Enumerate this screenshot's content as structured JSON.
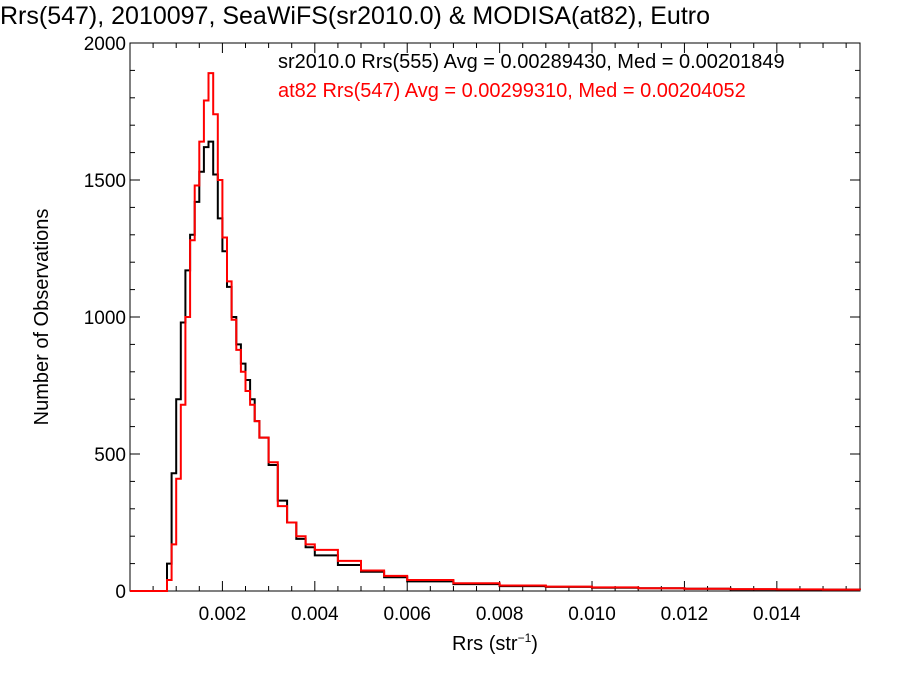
{
  "chart_data": {
    "type": "line",
    "title": "Rrs(547), 2010097, SeaWiFS(sr2010.0) & MODISA(at82), Eutro",
    "xlabel": "Rrs (str",
    "xlabel_sup": "−1",
    "xlabel_close": ")",
    "ylabel": "Number of Observations",
    "xlim": [
      0.0,
      0.0158
    ],
    "ylim": [
      0,
      2000
    ],
    "xticks": [
      0.002,
      0.004,
      0.006,
      0.008,
      0.01,
      0.012,
      0.014
    ],
    "xtick_labels": [
      "0.002",
      "0.004",
      "0.006",
      "0.008",
      "0.010",
      "0.012",
      "0.014"
    ],
    "yticks": [
      0,
      500,
      1000,
      1500,
      2000
    ],
    "ytick_labels": [
      "0",
      "500",
      "1000",
      "1500",
      "2000"
    ],
    "grid": false,
    "legend_position": "top-right",
    "legend": [
      "sr2010.0 Rrs(555) Avg = 0.00289430, Med = 0.00201849",
      "at82 Rrs(547) Avg = 0.00299310, Med = 0.00204052"
    ],
    "series": [
      {
        "name": "sr2010.0 Rrs(555)",
        "color": "#000000",
        "x": [
          0.0,
          0.0006,
          0.0008,
          0.0009,
          0.001,
          0.0011,
          0.0012,
          0.0013,
          0.0014,
          0.0015,
          0.0016,
          0.0017,
          0.0018,
          0.0019,
          0.002,
          0.0021,
          0.0022,
          0.0023,
          0.0024,
          0.0025,
          0.0026,
          0.0027,
          0.0028,
          0.003,
          0.0032,
          0.0034,
          0.0036,
          0.0038,
          0.004,
          0.0045,
          0.005,
          0.0055,
          0.006,
          0.007,
          0.008,
          0.009,
          0.01,
          0.011,
          0.012,
          0.013,
          0.014,
          0.015,
          0.0158
        ],
        "y": [
          0,
          0,
          100,
          430,
          700,
          980,
          1170,
          1300,
          1420,
          1530,
          1620,
          1640,
          1520,
          1360,
          1240,
          1110,
          1000,
          900,
          830,
          770,
          700,
          620,
          560,
          460,
          330,
          250,
          190,
          160,
          130,
          95,
          70,
          50,
          35,
          25,
          18,
          15,
          12,
          10,
          8,
          6,
          5,
          5,
          4
        ]
      },
      {
        "name": "at82 Rrs(547)",
        "color": "#ff0000",
        "x": [
          0.0,
          0.0007,
          0.0008,
          0.0009,
          0.001,
          0.0011,
          0.0012,
          0.0013,
          0.0014,
          0.0015,
          0.0016,
          0.0017,
          0.0018,
          0.0019,
          0.002,
          0.0021,
          0.0022,
          0.0023,
          0.0024,
          0.0025,
          0.0026,
          0.0027,
          0.0028,
          0.003,
          0.0032,
          0.0034,
          0.0036,
          0.0038,
          0.004,
          0.0045,
          0.005,
          0.0055,
          0.006,
          0.007,
          0.008,
          0.009,
          0.01,
          0.011,
          0.012,
          0.013,
          0.014,
          0.015,
          0.0158
        ],
        "y": [
          0,
          0,
          40,
          170,
          410,
          680,
          1000,
          1280,
          1480,
          1640,
          1790,
          1890,
          1740,
          1500,
          1290,
          1130,
          990,
          880,
          800,
          730,
          680,
          620,
          560,
          470,
          310,
          250,
          200,
          170,
          150,
          110,
          75,
          55,
          40,
          28,
          20,
          16,
          13,
          10,
          8,
          7,
          6,
          5,
          4
        ]
      }
    ]
  }
}
